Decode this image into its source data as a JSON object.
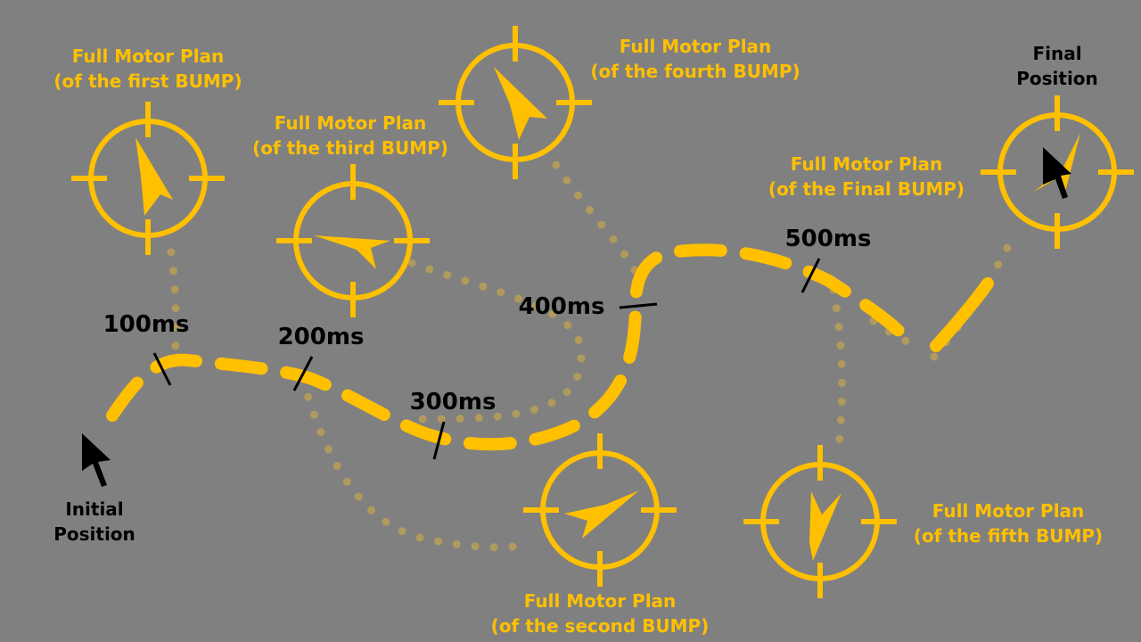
{
  "colors": {
    "background": "#808080",
    "accent": "#ffc000",
    "dotted": "#b09a5c",
    "ink": "#000000"
  },
  "plans": [
    {
      "id": "first",
      "line1": "Full Motor Plan",
      "line2": "(of the first BUMP)"
    },
    {
      "id": "second",
      "line1": "Full Motor Plan",
      "line2": "(of the second BUMP)"
    },
    {
      "id": "third",
      "line1": "Full Motor Plan",
      "line2": "(of the third BUMP)"
    },
    {
      "id": "fourth",
      "line1": "Full Motor Plan",
      "line2": "(of the fourth BUMP)"
    },
    {
      "id": "fifth",
      "line1": "Full Motor Plan",
      "line2": "(of the fifth BUMP)"
    },
    {
      "id": "final",
      "line1": "Full Motor Plan",
      "line2": "(of the Final BUMP)"
    }
  ],
  "initial_position": {
    "line1": "Initial",
    "line2": "Position"
  },
  "final_position": {
    "line1": "Final",
    "line2": "Position"
  },
  "time_markers": [
    "100ms",
    "200ms",
    "300ms",
    "400ms",
    "500ms"
  ],
  "icons": {
    "target": "crosshair-target-icon",
    "pointer": "mouse-cursor-icon",
    "plan_arrow": "plan-direction-arrow-icon"
  }
}
